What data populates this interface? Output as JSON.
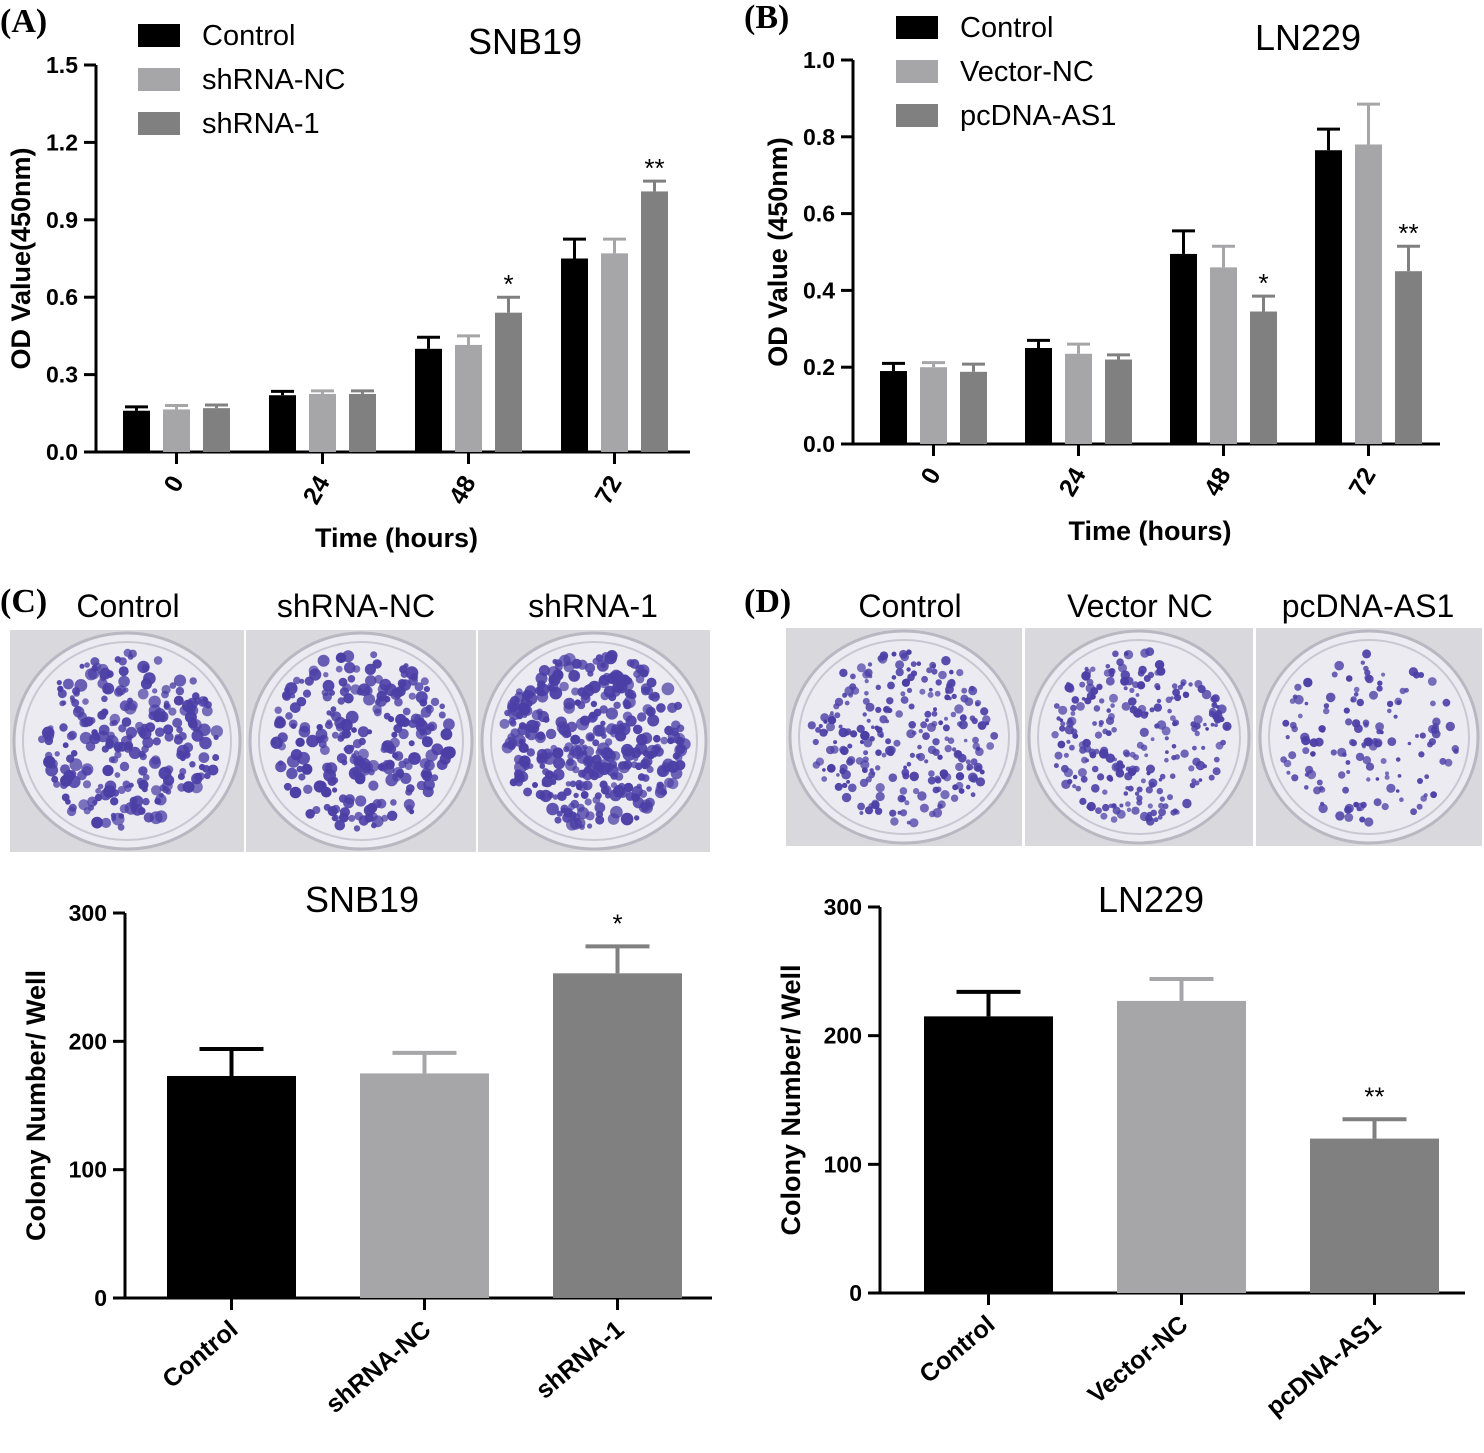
{
  "figure": {
    "panel_c": {
      "letter": "(C)",
      "plates": [
        "Control",
        "shRNA-NC",
        "shRNA-1"
      ],
      "colony_counts_relative": [
        1.0,
        1.0,
        1.45
      ]
    },
    "panel_d": {
      "letter": "(D)",
      "plates": [
        "Control",
        "Vector NC",
        "pcDNA-AS1"
      ],
      "colony_counts_relative": [
        1.0,
        1.0,
        0.55
      ]
    },
    "colors": {
      "control": "#000000",
      "nc": "#a6a6a8",
      "treat": "#808080",
      "plate_bg": "#ecebf1",
      "colony": "#4b3fa6"
    }
  },
  "chart_data": [
    {
      "id": "A",
      "letter": "(A)",
      "type": "bar",
      "title": "SNB19",
      "xlabel": "Time (hours)",
      "ylabel": "OD Value(450nm)",
      "categories": [
        "0",
        "24",
        "48",
        "72"
      ],
      "ylim": [
        0,
        1.5
      ],
      "yticks": [
        0.0,
        0.3,
        0.6,
        0.9,
        1.2,
        1.5
      ],
      "ytick_labels": [
        "0.0",
        "0.3",
        "0.6",
        "0.9",
        "1.2",
        "1.5"
      ],
      "legend": "top-left",
      "series": [
        {
          "name": "Control",
          "values": [
            0.16,
            0.22,
            0.4,
            0.75
          ],
          "errors": [
            0.015,
            0.015,
            0.045,
            0.075
          ]
        },
        {
          "name": "shRNA-NC",
          "values": [
            0.165,
            0.225,
            0.415,
            0.77
          ],
          "errors": [
            0.015,
            0.012,
            0.035,
            0.055
          ]
        },
        {
          "name": "shRNA-1",
          "values": [
            0.17,
            0.225,
            0.54,
            1.01
          ],
          "errors": [
            0.012,
            0.012,
            0.06,
            0.04
          ]
        }
      ],
      "annotations": [
        {
          "series": 2,
          "category": 2,
          "text": "*"
        },
        {
          "series": 2,
          "category": 3,
          "text": "**"
        }
      ]
    },
    {
      "id": "B",
      "letter": "(B)",
      "type": "bar",
      "title": "LN229",
      "xlabel": "Time (hours)",
      "ylabel": "OD Value (450nm)",
      "categories": [
        "0",
        "24",
        "48",
        "72"
      ],
      "ylim": [
        0,
        1.0
      ],
      "yticks": [
        0.0,
        0.2,
        0.4,
        0.6,
        0.8,
        1.0
      ],
      "ytick_labels": [
        "0.0",
        "0.2",
        "0.4",
        "0.6",
        "0.8",
        "1.0"
      ],
      "legend": "top-left",
      "series": [
        {
          "name": "Control",
          "values": [
            0.19,
            0.25,
            0.495,
            0.765
          ],
          "errors": [
            0.02,
            0.02,
            0.06,
            0.055
          ]
        },
        {
          "name": "Vector-NC",
          "values": [
            0.2,
            0.235,
            0.46,
            0.78
          ],
          "errors": [
            0.012,
            0.025,
            0.055,
            0.105
          ]
        },
        {
          "name": "pcDNA-AS1",
          "values": [
            0.188,
            0.22,
            0.345,
            0.45
          ],
          "errors": [
            0.02,
            0.012,
            0.04,
            0.065
          ]
        }
      ],
      "annotations": [
        {
          "series": 2,
          "category": 2,
          "text": "*"
        },
        {
          "series": 2,
          "category": 3,
          "text": "**"
        }
      ]
    },
    {
      "id": "C",
      "type": "bar",
      "title": "SNB19",
      "xlabel": "",
      "ylabel": "Colony Number/ Well",
      "categories": [
        "Control",
        "shRNA-NC",
        "shRNA-1"
      ],
      "values": [
        173,
        175,
        253
      ],
      "errors": [
        21,
        16,
        21
      ],
      "ylim": [
        0,
        300
      ],
      "yticks": [
        0,
        100,
        200,
        300
      ],
      "ytick_labels": [
        "0",
        "100",
        "200",
        "300"
      ],
      "annotations": [
        {
          "category": 2,
          "text": "*"
        }
      ]
    },
    {
      "id": "D",
      "type": "bar",
      "title": "LN229",
      "xlabel": "",
      "ylabel": "Colony Number/ Well",
      "categories": [
        "Control",
        "Vector-NC",
        "pcDNA-AS1"
      ],
      "values": [
        215,
        227,
        120
      ],
      "errors": [
        19,
        17,
        15
      ],
      "ylim": [
        0,
        300
      ],
      "yticks": [
        0,
        100,
        200,
        300
      ],
      "ytick_labels": [
        "0",
        "100",
        "200",
        "300"
      ],
      "annotations": [
        {
          "category": 2,
          "text": "**"
        }
      ]
    }
  ]
}
